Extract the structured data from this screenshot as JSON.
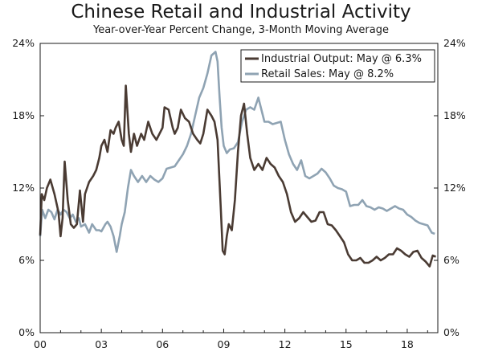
{
  "chart_data": {
    "type": "line",
    "title": "Chinese Retail and Industrial Activity",
    "subtitle": "Year-over-Year Percent Change, 3-Month Moving Average",
    "x_range": [
      2000.0,
      2019.5
    ],
    "ylim": [
      0,
      24
    ],
    "y_ticks": [
      0,
      6,
      12,
      18,
      24
    ],
    "y_tick_labels": [
      "0%",
      "6%",
      "12%",
      "18%",
      "24%"
    ],
    "y_axis_right": true,
    "x_ticks": [
      2000,
      2003,
      2006,
      2009,
      2012,
      2015,
      2018
    ],
    "x_tick_labels": [
      "00",
      "03",
      "06",
      "09",
      "12",
      "15",
      "18"
    ],
    "grid": false,
    "legend_position": "top-right",
    "series": [
      {
        "name": "Industrial Output: May @ 6.3%",
        "color": "#4a3b33",
        "x": [
          2000.0,
          2000.08,
          2000.2,
          2000.33,
          2000.5,
          2000.7,
          2000.9,
          2001.0,
          2001.1,
          2001.2,
          2001.35,
          2001.5,
          2001.65,
          2001.8,
          2001.95,
          2002.1,
          2002.2,
          2002.4,
          2002.6,
          2002.75,
          2002.9,
          2003.0,
          2003.15,
          2003.3,
          2003.45,
          2003.6,
          2003.7,
          2003.85,
          2004.0,
          2004.1,
          2004.2,
          2004.35,
          2004.45,
          2004.6,
          2004.75,
          2004.95,
          2005.1,
          2005.3,
          2005.5,
          2005.7,
          2005.85,
          2006.0,
          2006.1,
          2006.3,
          2006.5,
          2006.6,
          2006.75,
          2006.9,
          2007.1,
          2007.3,
          2007.5,
          2007.7,
          2007.85,
          2008.0,
          2008.2,
          2008.4,
          2008.55,
          2008.7,
          2008.85,
          2008.95,
          2009.05,
          2009.15,
          2009.25,
          2009.4,
          2009.55,
          2009.7,
          2009.85,
          2010.0,
          2010.15,
          2010.3,
          2010.5,
          2010.7,
          2010.9,
          2011.1,
          2011.3,
          2011.5,
          2011.7,
          2011.9,
          2012.1,
          2012.3,
          2012.5,
          2012.7,
          2012.9,
          2013.1,
          2013.3,
          2013.5,
          2013.7,
          2013.9,
          2014.1,
          2014.3,
          2014.5,
          2014.7,
          2014.9,
          2015.1,
          2015.3,
          2015.5,
          2015.7,
          2015.9,
          2016.1,
          2016.3,
          2016.5,
          2016.7,
          2016.9,
          2017.1,
          2017.3,
          2017.5,
          2017.7,
          2017.9,
          2018.1,
          2018.3,
          2018.5,
          2018.7,
          2018.9,
          2019.1,
          2019.25,
          2019.4
        ],
        "values": [
          8.1,
          11.5,
          11.0,
          12.0,
          12.7,
          11.5,
          10.0,
          8.0,
          9.5,
          14.2,
          11.0,
          9.0,
          8.7,
          9.0,
          11.8,
          9.2,
          11.5,
          12.5,
          13.0,
          13.5,
          14.5,
          15.5,
          16.0,
          15.0,
          16.8,
          16.5,
          17.0,
          17.5,
          16.0,
          15.5,
          20.5,
          16.5,
          15.0,
          16.5,
          15.5,
          16.5,
          16.0,
          17.5,
          16.5,
          16.0,
          16.5,
          17.0,
          18.7,
          18.5,
          17.0,
          16.5,
          17.0,
          18.5,
          17.8,
          17.5,
          16.5,
          16.0,
          15.7,
          16.5,
          18.5,
          18.0,
          17.5,
          16.0,
          10.5,
          6.8,
          6.5,
          8.0,
          9.0,
          8.5,
          11.0,
          15.0,
          18.0,
          19.0,
          16.5,
          14.5,
          13.5,
          14.0,
          13.5,
          14.5,
          14.0,
          13.7,
          13.0,
          12.5,
          11.5,
          10.0,
          9.2,
          9.5,
          10.0,
          9.6,
          9.2,
          9.3,
          10.0,
          10.0,
          9.0,
          8.9,
          8.5,
          8.0,
          7.5,
          6.5,
          6.0,
          6.0,
          6.2,
          5.8,
          5.8,
          6.0,
          6.3,
          6.0,
          6.2,
          6.5,
          6.5,
          7.0,
          6.8,
          6.5,
          6.3,
          6.7,
          6.8,
          6.2,
          5.9,
          5.5,
          6.4,
          6.3
        ]
      },
      {
        "name": "Retail Sales: May @ 8.2%",
        "color": "#8fa3b3",
        "x": [
          2000.0,
          2000.1,
          2000.25,
          2000.4,
          2000.55,
          2000.7,
          2000.85,
          2001.0,
          2001.15,
          2001.3,
          2001.45,
          2001.6,
          2001.75,
          2001.9,
          2002.0,
          2002.2,
          2002.4,
          2002.55,
          2002.75,
          2002.9,
          2003.0,
          2003.1,
          2003.2,
          2003.3,
          2003.45,
          2003.6,
          2003.75,
          2003.9,
          2004.0,
          2004.15,
          2004.3,
          2004.45,
          2004.6,
          2004.8,
          2005.0,
          2005.2,
          2005.4,
          2005.6,
          2005.8,
          2006.0,
          2006.2,
          2006.4,
          2006.6,
          2006.8,
          2007.0,
          2007.2,
          2007.4,
          2007.6,
          2007.8,
          2008.0,
          2008.2,
          2008.4,
          2008.6,
          2008.7,
          2008.8,
          2008.9,
          2009.0,
          2009.15,
          2009.3,
          2009.5,
          2009.7,
          2009.9,
          2010.1,
          2010.3,
          2010.5,
          2010.7,
          2010.85,
          2011.0,
          2011.2,
          2011.4,
          2011.6,
          2011.8,
          2012.0,
          2012.2,
          2012.4,
          2012.6,
          2012.8,
          2013.0,
          2013.2,
          2013.4,
          2013.6,
          2013.8,
          2014.0,
          2014.2,
          2014.4,
          2014.6,
          2014.8,
          2015.0,
          2015.2,
          2015.4,
          2015.6,
          2015.8,
          2016.0,
          2016.2,
          2016.4,
          2016.6,
          2016.8,
          2017.0,
          2017.2,
          2017.4,
          2017.6,
          2017.8,
          2018.0,
          2018.2,
          2018.4,
          2018.6,
          2018.8,
          2019.0,
          2019.2,
          2019.35
        ],
        "values": [
          8.0,
          10.2,
          9.5,
          10.2,
          10.0,
          9.4,
          10.2,
          9.8,
          10.2,
          10.0,
          9.5,
          9.8,
          9.2,
          9.5,
          8.8,
          9.0,
          8.3,
          9.0,
          8.5,
          8.5,
          8.4,
          8.7,
          9.0,
          9.2,
          8.8,
          8.0,
          6.7,
          8.0,
          9.0,
          10.0,
          12.0,
          13.5,
          13.0,
          12.5,
          13.0,
          12.5,
          13.0,
          12.7,
          12.5,
          12.8,
          13.6,
          13.7,
          13.8,
          14.3,
          14.8,
          15.5,
          16.5,
          18.0,
          19.5,
          20.3,
          21.5,
          23.0,
          23.3,
          22.5,
          19.5,
          17.0,
          15.5,
          14.9,
          15.2,
          15.3,
          15.8,
          17.5,
          18.5,
          18.7,
          18.5,
          19.5,
          18.5,
          17.5,
          17.5,
          17.3,
          17.4,
          17.5,
          16.0,
          14.8,
          14.0,
          13.5,
          14.3,
          13.0,
          12.8,
          13.0,
          13.2,
          13.6,
          13.3,
          12.8,
          12.2,
          12.0,
          11.9,
          11.7,
          10.5,
          10.6,
          10.6,
          11.0,
          10.5,
          10.4,
          10.2,
          10.4,
          10.3,
          10.1,
          10.3,
          10.5,
          10.3,
          10.2,
          9.8,
          9.6,
          9.3,
          9.1,
          9.0,
          8.9,
          8.3,
          8.2
        ]
      }
    ]
  }
}
